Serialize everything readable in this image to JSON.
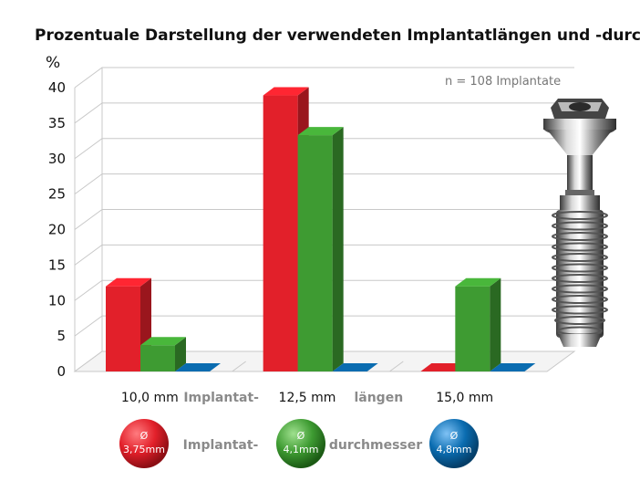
{
  "chart_data": {
    "type": "bar",
    "title": "Prozentuale Darstellung der verwendeten Implantatlängen und -durchmesser",
    "ylabel": "%",
    "ylim": [
      0,
      40
    ],
    "yticks": [
      0,
      5,
      10,
      15,
      20,
      25,
      30,
      35,
      40
    ],
    "grid": true,
    "three_d": true,
    "categories": [
      "10,0 mm",
      "12,5 mm",
      "15,0 mm"
    ],
    "category_separators": [
      "Implantat-",
      "längen"
    ],
    "annotation": "n = 108 Implantate",
    "series": [
      {
        "name": "Ø 3,75mm",
        "symbol": "Ø",
        "label": "3,75mm",
        "color": "#e2202a",
        "values": [
          12,
          38.9,
          0
        ]
      },
      {
        "name": "Ø 4,1mm",
        "symbol": "Ø",
        "label": "4,1mm",
        "color": "#3e9b32",
        "values": [
          3.7,
          33.3,
          12
        ]
      },
      {
        "name": "Ø 4,8mm",
        "symbol": "Ø",
        "label": "4,8mm",
        "color": "#0a6cb0",
        "values": [
          0,
          0,
          0
        ]
      }
    ],
    "legend": {
      "placement": "bottom",
      "labels": [
        "Implantat-",
        "durchmesser"
      ]
    }
  }
}
